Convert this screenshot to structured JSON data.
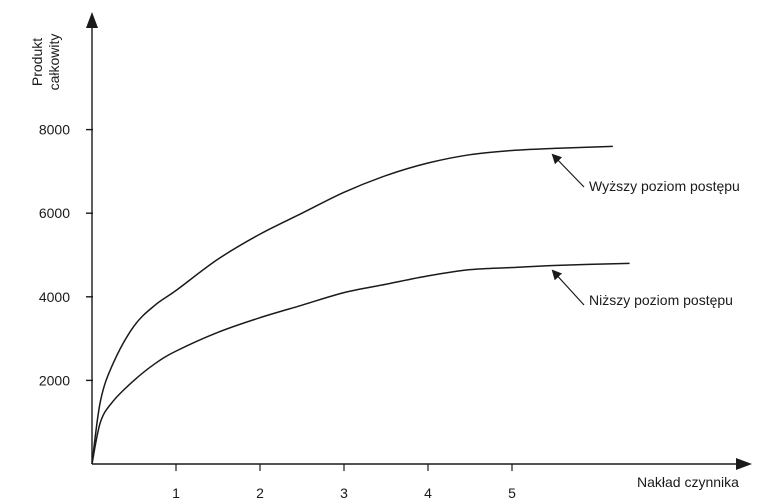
{
  "chart_data": {
    "type": "line",
    "xlabel": "Nakład czynnika",
    "ylabel_lines": [
      "Produkt",
      "całkowity"
    ],
    "x_ticks": [
      1,
      2,
      3,
      4,
      5
    ],
    "y_ticks": [
      2000,
      4000,
      6000,
      8000
    ],
    "xlim": [
      0,
      7.6
    ],
    "ylim": [
      0,
      10000
    ],
    "grid": false,
    "legend": "none",
    "line_color": "#1a1a1a",
    "series": [
      {
        "x": [
          0,
          0.1,
          0.25,
          0.5,
          0.75,
          1,
          1.5,
          2,
          2.5,
          3,
          3.5,
          4,
          4.5,
          5,
          5.5,
          6.2
        ],
        "y": [
          0,
          1500,
          2400,
          3300,
          3800,
          4150,
          4900,
          5500,
          6000,
          6500,
          6900,
          7200,
          7400,
          7500,
          7550,
          7600
        ]
      },
      {
        "x": [
          0,
          0.1,
          0.25,
          0.5,
          0.75,
          1,
          1.5,
          2,
          2.5,
          3,
          3.5,
          4,
          4.5,
          5,
          5.5,
          6.4
        ],
        "y": [
          0,
          1000,
          1500,
          2000,
          2400,
          2700,
          3150,
          3500,
          3800,
          4100,
          4300,
          4500,
          4650,
          4700,
          4750,
          4800
        ]
      }
    ],
    "annotations": [
      {
        "text": "Wyższy poziom postępu",
        "x": 5.4,
        "y": 7500
      },
      {
        "text": "Niższy poziom postępu",
        "x": 5.4,
        "y": 4700
      }
    ]
  }
}
